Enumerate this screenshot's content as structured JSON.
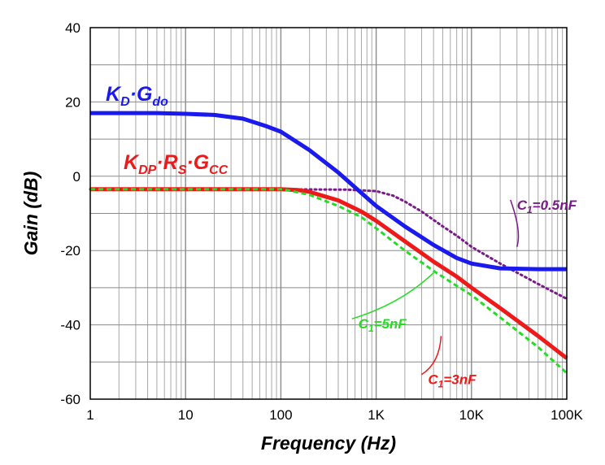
{
  "chart_data": {
    "type": "line",
    "xlabel": "Frequency (Hz)",
    "ylabel": "Gain (dB)",
    "xscale": "log",
    "xlim": [
      1,
      100000
    ],
    "ylim": [
      -60,
      40
    ],
    "grid": true,
    "x_ticks": [
      {
        "value": 1,
        "label": "1"
      },
      {
        "value": 10,
        "label": "10"
      },
      {
        "value": 100,
        "label": "100"
      },
      {
        "value": 1000,
        "label": "1K"
      },
      {
        "value": 10000,
        "label": "10K"
      },
      {
        "value": 100000,
        "label": "100K"
      }
    ],
    "y_ticks": [
      {
        "value": 40,
        "label": "40"
      },
      {
        "value": 20,
        "label": "20"
      },
      {
        "value": 0,
        "label": "0"
      },
      {
        "value": -20,
        "label": "-20"
      },
      {
        "value": -40,
        "label": "-40"
      },
      {
        "value": -60,
        "label": "-60"
      }
    ],
    "series": [
      {
        "key": "kd_gdo",
        "label": {
          "base1": "K",
          "sub1": "D",
          "dot1": "·",
          "base2": "G",
          "sub2": "do"
        },
        "color": "#1a1aee",
        "style": "solid",
        "width": 5,
        "points": [
          [
            1,
            17
          ],
          [
            5,
            17
          ],
          [
            10,
            16.8
          ],
          [
            20,
            16.5
          ],
          [
            40,
            15.5
          ],
          [
            70,
            13.5
          ],
          [
            100,
            12
          ],
          [
            200,
            7
          ],
          [
            400,
            1
          ],
          [
            700,
            -4.5
          ],
          [
            1000,
            -8
          ],
          [
            2000,
            -13.5
          ],
          [
            4000,
            -18.5
          ],
          [
            7000,
            -22
          ],
          [
            10000,
            -23.5
          ],
          [
            20000,
            -24.8
          ],
          [
            50000,
            -25
          ],
          [
            100000,
            -25
          ]
        ]
      },
      {
        "key": "c1_3nf",
        "label": {
          "base1": "K",
          "sub1": "DP",
          "dot1": "·",
          "base2": "R",
          "sub2": "S",
          "dot2": "·",
          "base3": "G",
          "sub3": "CC"
        },
        "color": "#ee1a1a",
        "style": "solid",
        "width": 5,
        "points": [
          [
            1,
            -3.5
          ],
          [
            10,
            -3.5
          ],
          [
            100,
            -3.5
          ],
          [
            150,
            -3.7
          ],
          [
            200,
            -4.2
          ],
          [
            400,
            -6.5
          ],
          [
            700,
            -9.5
          ],
          [
            1000,
            -12
          ],
          [
            2000,
            -17.5
          ],
          [
            4000,
            -23
          ],
          [
            7000,
            -27
          ],
          [
            10000,
            -30
          ],
          [
            20000,
            -35.5
          ],
          [
            50000,
            -43
          ],
          [
            100000,
            -49
          ]
        ]
      },
      {
        "key": "c1_5nf",
        "color": "#22dd22",
        "style": "dashed",
        "width": 3,
        "points": [
          [
            1,
            -3.5
          ],
          [
            10,
            -3.5
          ],
          [
            100,
            -3.5
          ],
          [
            120,
            -3.8
          ],
          [
            200,
            -5
          ],
          [
            400,
            -8
          ],
          [
            700,
            -11
          ],
          [
            1000,
            -14
          ],
          [
            2000,
            -20
          ],
          [
            4000,
            -25.5
          ],
          [
            7000,
            -29.5
          ],
          [
            10000,
            -32
          ],
          [
            20000,
            -38
          ],
          [
            50000,
            -46
          ],
          [
            100000,
            -53
          ]
        ]
      },
      {
        "key": "c1_05nf",
        "color": "#7a1a8a",
        "style": "dotted",
        "width": 3,
        "points": [
          [
            1,
            -3.5
          ],
          [
            100,
            -3.5
          ],
          [
            500,
            -3.6
          ],
          [
            1000,
            -4
          ],
          [
            1500,
            -5.2
          ],
          [
            2000,
            -6.8
          ],
          [
            3000,
            -9.5
          ],
          [
            5000,
            -13.5
          ],
          [
            7000,
            -16
          ],
          [
            10000,
            -19
          ],
          [
            20000,
            -23.5
          ],
          [
            50000,
            -29
          ],
          [
            100000,
            -33
          ]
        ]
      }
    ],
    "annotations": [
      {
        "key": "c1_05nf",
        "text": "C",
        "sub": "1",
        "rest": "=0.5nF",
        "color": "#7a1a8a",
        "x": 30000,
        "y": -9,
        "arrow_x": 30000,
        "arrow_y": -19
      },
      {
        "key": "c1_5nf",
        "text": "C",
        "sub": "1",
        "rest": "=5nF",
        "color": "#22dd22",
        "x": 650,
        "y": -41,
        "arrow_x": 4000,
        "arrow_y": -26
      },
      {
        "key": "c1_3nf",
        "text": "C",
        "sub": "1",
        "rest": "=3nF",
        "color": "#ee1a1a",
        "x": 3500,
        "y": -56,
        "arrow_x": 4800,
        "arrow_y": -43
      }
    ]
  }
}
